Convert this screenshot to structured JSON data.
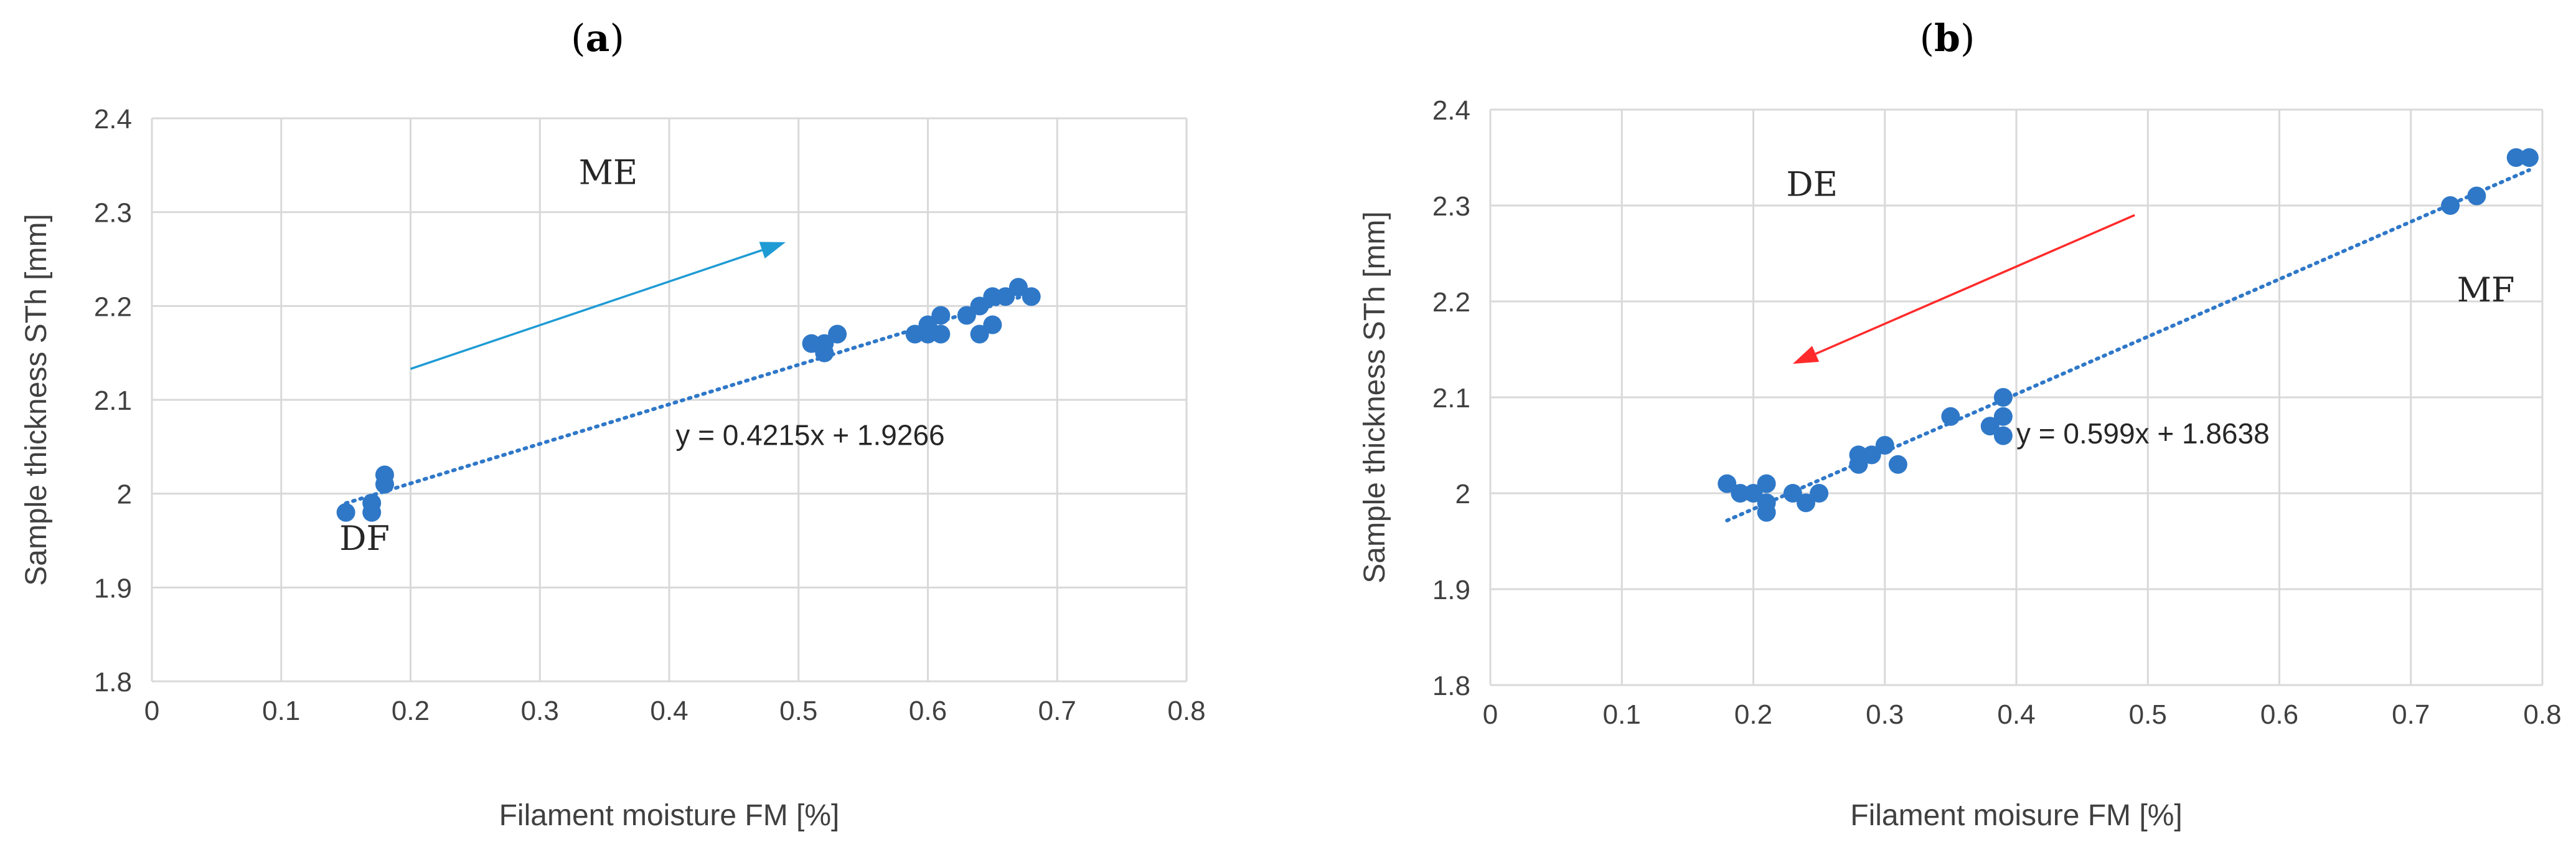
{
  "chart_data": [
    {
      "type": "scatter",
      "panel_label": "a",
      "xlabel": "Filament moisture FM [%]",
      "ylabel": "Sample thickness STh [mm]",
      "xlim": [
        0,
        0.8
      ],
      "ylim": [
        1.8,
        2.4
      ],
      "x_ticks": [
        0,
        0.1,
        0.2,
        0.3,
        0.4,
        0.5,
        0.6,
        0.7,
        0.8
      ],
      "y_ticks": [
        1.8,
        1.9,
        2.0,
        2.1,
        2.2,
        2.3,
        2.4
      ],
      "x_tick_labels": [
        "0",
        "0.1",
        "0.2",
        "0.3",
        "0.4",
        "0.5",
        "0.6",
        "0.7",
        "0.8"
      ],
      "y_tick_labels": [
        "1.8",
        "1.9",
        "2",
        "2.1",
        "2.2",
        "2.3",
        "2.4"
      ],
      "grid": true,
      "marker_color": "#2f78c8",
      "points": [
        [
          0.15,
          1.98
        ],
        [
          0.17,
          1.98
        ],
        [
          0.17,
          1.99
        ],
        [
          0.18,
          2.01
        ],
        [
          0.18,
          2.02
        ],
        [
          0.51,
          2.16
        ],
        [
          0.52,
          2.15
        ],
        [
          0.52,
          2.16
        ],
        [
          0.53,
          2.17
        ],
        [
          0.59,
          2.17
        ],
        [
          0.6,
          2.18
        ],
        [
          0.6,
          2.17
        ],
        [
          0.61,
          2.17
        ],
        [
          0.61,
          2.19
        ],
        [
          0.63,
          2.19
        ],
        [
          0.64,
          2.2
        ],
        [
          0.64,
          2.17
        ],
        [
          0.65,
          2.18
        ],
        [
          0.65,
          2.21
        ],
        [
          0.66,
          2.21
        ],
        [
          0.67,
          2.22
        ],
        [
          0.68,
          2.21
        ]
      ],
      "trendline": {
        "slope": 0.4215,
        "intercept": 1.9266,
        "x_range": [
          0.15,
          0.68
        ],
        "color": "#2f78c8",
        "equation_label": "y = 0.4215x + 1.9266",
        "label_at": [
          0.405,
          2.052
        ]
      },
      "arrow": {
        "from": [
          0.2,
          2.133
        ],
        "to": [
          0.49,
          2.268
        ],
        "color": "#1f9bd4"
      },
      "annotations": [
        {
          "text": "ME",
          "at": [
            0.33,
            2.33
          ]
        },
        {
          "text": "DF",
          "at": [
            0.145,
            1.94
          ]
        }
      ]
    },
    {
      "type": "scatter",
      "panel_label": "b",
      "xlabel": "Filament moisure FM [%]",
      "ylabel": "Sample thickness STh  [mm]",
      "xlim": [
        0,
        0.8
      ],
      "ylim": [
        1.8,
        2.4
      ],
      "x_ticks": [
        0,
        0.1,
        0.2,
        0.3,
        0.4,
        0.5,
        0.6,
        0.7,
        0.8
      ],
      "y_ticks": [
        1.8,
        1.9,
        2.0,
        2.1,
        2.2,
        2.3,
        2.4
      ],
      "x_tick_labels": [
        "0",
        "0.1",
        "0.2",
        "0.3",
        "0.4",
        "0.5",
        "0.6",
        "0.7",
        "0.8"
      ],
      "y_tick_labels": [
        "1.8",
        "1.9",
        "2",
        "2.1",
        "2.2",
        "2.3",
        "2.4"
      ],
      "grid": true,
      "marker_color": "#2f78c8",
      "points": [
        [
          0.18,
          2.01
        ],
        [
          0.19,
          2.0
        ],
        [
          0.2,
          2.0
        ],
        [
          0.21,
          2.01
        ],
        [
          0.21,
          1.99
        ],
        [
          0.21,
          1.98
        ],
        [
          0.23,
          2.0
        ],
        [
          0.24,
          1.99
        ],
        [
          0.25,
          2.0
        ],
        [
          0.28,
          2.04
        ],
        [
          0.28,
          2.03
        ],
        [
          0.29,
          2.04
        ],
        [
          0.3,
          2.05
        ],
        [
          0.31,
          2.03
        ],
        [
          0.35,
          2.08
        ],
        [
          0.38,
          2.07
        ],
        [
          0.39,
          2.1
        ],
        [
          0.39,
          2.08
        ],
        [
          0.39,
          2.06
        ],
        [
          0.73,
          2.3
        ],
        [
          0.75,
          2.31
        ],
        [
          0.78,
          2.35
        ],
        [
          0.79,
          2.35
        ]
      ],
      "trendline": {
        "slope": 0.599,
        "intercept": 1.8638,
        "x_range": [
          0.18,
          0.79
        ],
        "color": "#2f78c8",
        "equation_label": "y = 0.599x + 1.8638",
        "label_at": [
          0.4,
          2.052
        ]
      },
      "arrow": {
        "from": [
          0.49,
          2.29
        ],
        "to": [
          0.23,
          2.135
        ],
        "color": "#ff2b2b"
      },
      "annotations": [
        {
          "text": "DE",
          "at": [
            0.225,
            2.31
          ]
        },
        {
          "text": "MF",
          "at": [
            0.735,
            2.2
          ]
        }
      ]
    }
  ]
}
